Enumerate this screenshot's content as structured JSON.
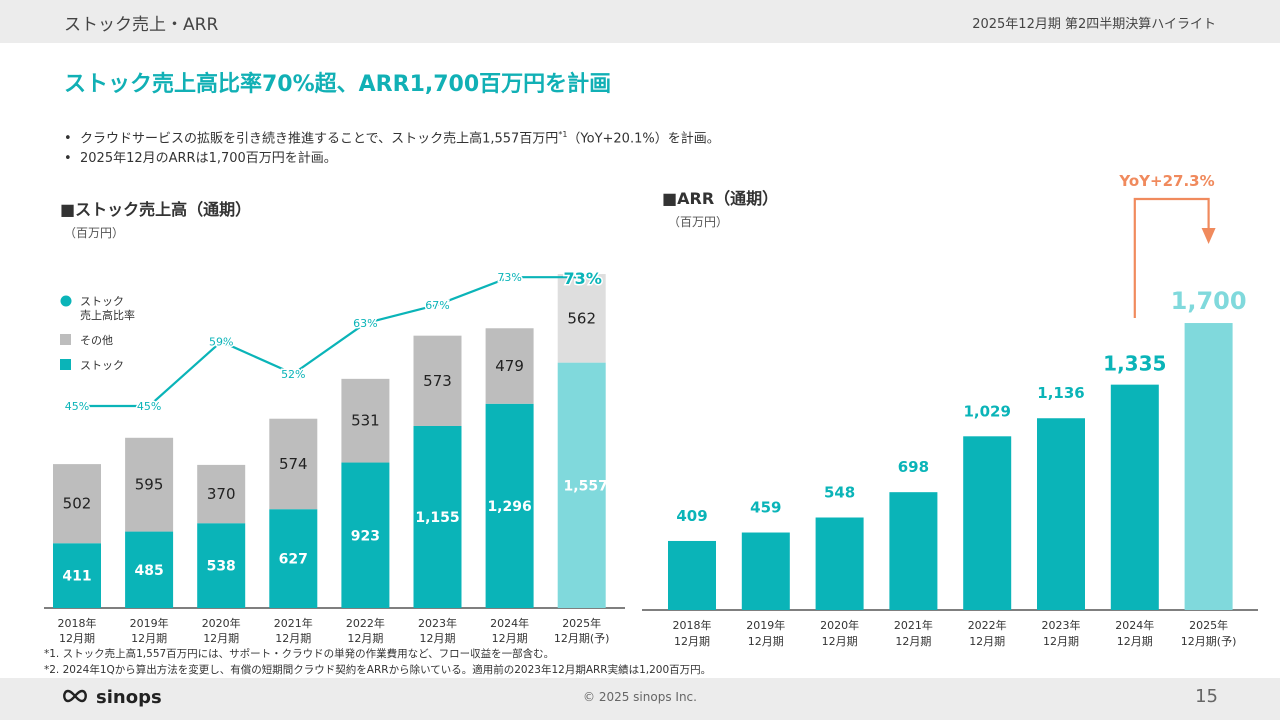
{
  "header": {
    "section": "ストック売上・ARR",
    "meta": "2025年12月期 第2四半期決算ハイライト"
  },
  "headline": "ストック売上高比率70%超、ARR1,700百万円を計画",
  "bullets": [
    {
      "pre": "クラウドサービスの拡販を引き続き推進することで、ストック売上高1,557百万円",
      "sup": "*1",
      "post": "（YoY+20.1%）を計画。"
    },
    {
      "pre": "2025年12月のARRは1,700百万円を計画。",
      "sup": "",
      "post": ""
    }
  ],
  "left_chart": {
    "title": "■ストック売上高（通期）",
    "unit": "（百万円）"
  },
  "right_chart": {
    "title": "■ARR（通期）",
    "unit": "（百万円）",
    "yoy_label": "YoY+27.3%"
  },
  "chart_data": [
    {
      "type": "bar",
      "stacked": true,
      "title": "■ストック売上高（通期）",
      "ylabel": "（百万円）",
      "categories": [
        [
          "2018年",
          "12月期"
        ],
        [
          "2019年",
          "12月期"
        ],
        [
          "2020年",
          "12月期"
        ],
        [
          "2021年",
          "12月期"
        ],
        [
          "2022年",
          "12月期"
        ],
        [
          "2023年",
          "12月期"
        ],
        [
          "2024年",
          "12月期"
        ],
        [
          "2025年",
          "12月期(予)"
        ]
      ],
      "series": [
        {
          "name": "ストック",
          "values": [
            411,
            485,
            538,
            627,
            923,
            1155,
            1296,
            1557
          ],
          "color": "#0ab4b8",
          "forecast_color": "#80d9dc",
          "label_color": "#ffffff"
        },
        {
          "name": "その他",
          "values": [
            502,
            595,
            370,
            574,
            531,
            573,
            479,
            562
          ],
          "color": "#bdbdbd",
          "forecast_color": "#dedede",
          "label_color": "#222222"
        }
      ],
      "line": {
        "name": "ストック\n売上高比率",
        "values": [
          "45%",
          "45%",
          "59%",
          "52%",
          "63%",
          "67%",
          "73%",
          "73%"
        ],
        "numeric": [
          45,
          45,
          59,
          52,
          63,
          67,
          73,
          73
        ],
        "color": "#0ab4b8"
      },
      "legend": [
        {
          "label": "ストック\n売上高比率",
          "shape": "circle",
          "color": "#0ab4b8"
        },
        {
          "label": "その他",
          "shape": "square",
          "color": "#bdbdbd"
        },
        {
          "label": "ストック",
          "shape": "square",
          "color": "#0ab4b8"
        }
      ],
      "legend_position": "top-left",
      "grid": false
    },
    {
      "type": "bar",
      "title": "■ARR（通期）",
      "ylabel": "（百万円）",
      "categories": [
        [
          "2018年",
          "12月期"
        ],
        [
          "2019年",
          "12月期"
        ],
        [
          "2020年",
          "12月期"
        ],
        [
          "2021年",
          "12月期"
        ],
        [
          "2022年",
          "12月期"
        ],
        [
          "2023年",
          "12月期"
        ],
        [
          "2024年",
          "12月期"
        ],
        [
          "2025年",
          "12月期(予)"
        ]
      ],
      "series": [
        {
          "name": "ARR",
          "values": [
            409,
            459,
            548,
            698,
            1029,
            1136,
            1335,
            1700
          ],
          "labels": [
            "409",
            "459",
            "548",
            "698",
            "1,029",
            "1,136",
            "1,335",
            "1,700"
          ],
          "color": "#0ab4b8",
          "forecast_color": "#80d9dc"
        }
      ],
      "annotation": "YoY+27.3%",
      "annotation_color": "#f08a5d",
      "grid": false
    }
  ],
  "footnotes": [
    {
      "mark": "*1.",
      "text": "ストック売上高1,557百万円には、サポート・クラウドの単発の作業費用など、フロー収益を一部含む。"
    },
    {
      "mark": "*2.",
      "text": "2024年1Qから算出方法を変更し、有償の短期間クラウド契約をARRから除いている。適用前の2023年12月期ARR実績は1,200百万円。"
    }
  ],
  "footer": {
    "logo": "sinops",
    "copyright": "© 2025 sinops Inc.",
    "page": "15"
  }
}
